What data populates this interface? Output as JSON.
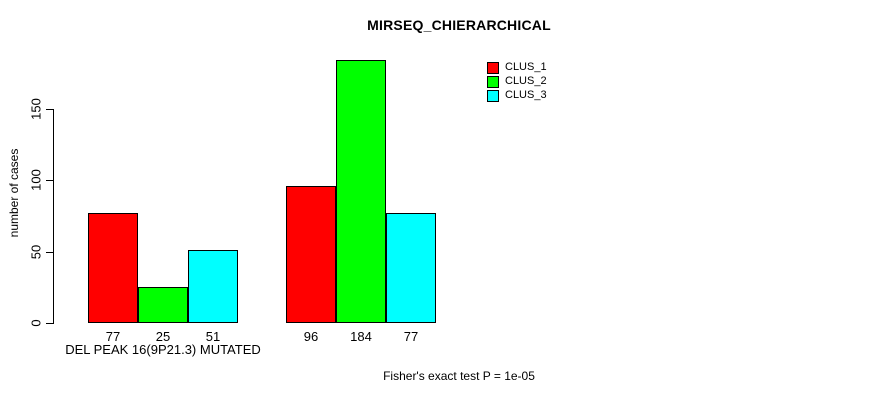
{
  "title": "MIRSEQ_CHIERARCHICAL",
  "footer_annotation": "Fisher's exact test P = 1e-05",
  "colors": {
    "clus_1": "#ff0000",
    "clus_2": "#00ff00",
    "clus_3": "#00ffff",
    "axis": "#000000",
    "background": "#ffffff"
  },
  "chart_data": {
    "type": "bar",
    "title": "MIRSEQ_CHIERARCHICAL",
    "xlabel": "DEL PEAK 16(9P21.3) MUTATED",
    "ylabel": "number of cases",
    "yticks": [
      0,
      50,
      100,
      150
    ],
    "ylim": [
      0,
      150
    ],
    "grid": false,
    "legend_position": "top-right",
    "num_groups": 2,
    "series": [
      {
        "name": "CLUS_1",
        "color": "#ff0000",
        "values": [
          77,
          96
        ]
      },
      {
        "name": "CLUS_2",
        "color": "#00ff00",
        "values": [
          25,
          184
        ]
      },
      {
        "name": "CLUS_3",
        "color": "#00ffff",
        "values": [
          51,
          77
        ]
      }
    ],
    "bar_value_labels": [
      [
        77,
        25,
        51
      ],
      [
        96,
        184,
        77
      ]
    ],
    "annotation": "Fisher's exact test P = 1e-05"
  }
}
